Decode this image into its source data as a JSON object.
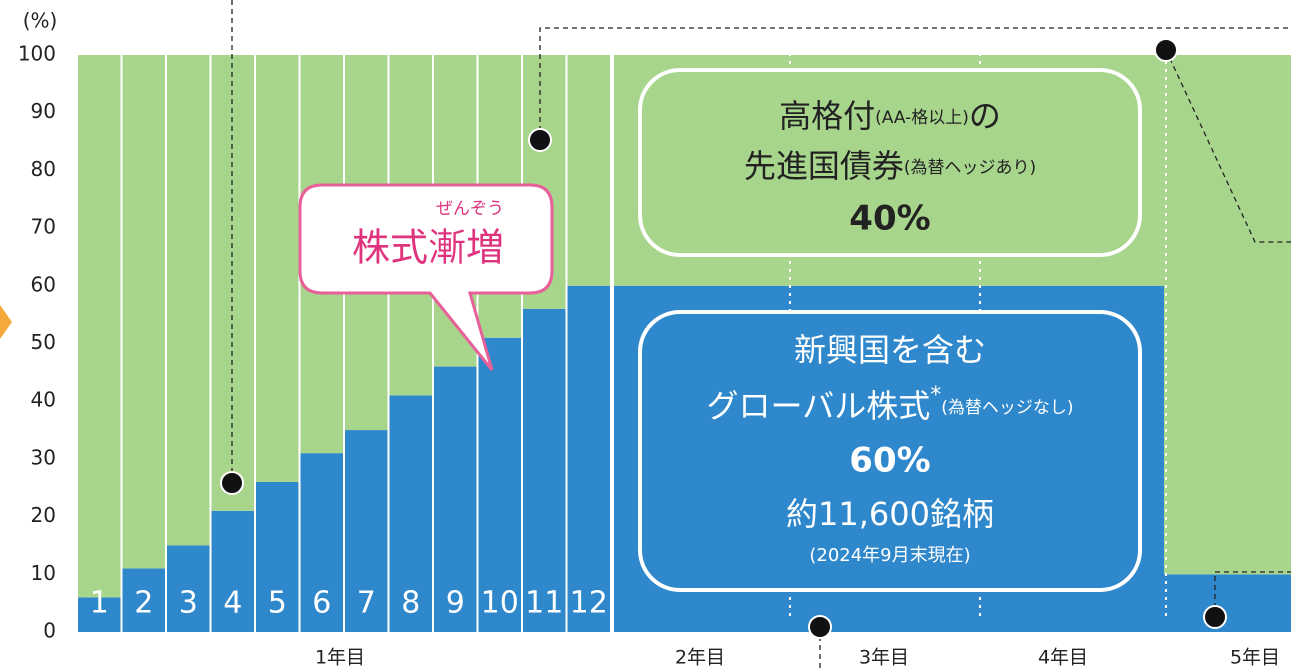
{
  "chart_data": {
    "type": "stacked-bar",
    "y_unit": "(%)",
    "categories": [
      "1",
      "2",
      "3",
      "4",
      "5",
      "6",
      "7",
      "8",
      "9",
      "10",
      "11",
      "12",
      null,
      null
    ],
    "periods": [
      "1年目",
      "2年目",
      "3年目",
      "4年目",
      "5年目"
    ],
    "series": [
      {
        "color": "#2f88cc",
        "values": [
          6,
          11,
          15,
          21,
          26,
          31,
          35,
          41,
          46,
          51,
          56,
          60,
          60,
          10
        ]
      },
      {
        "color": "#a8d58c",
        "values": [
          94,
          89,
          85,
          79,
          74,
          69,
          65,
          59,
          54,
          49,
          44,
          40,
          40,
          90
        ]
      }
    ],
    "ylim": [
      0,
      100
    ],
    "yticks": [
      0,
      10,
      20,
      30,
      40,
      50,
      60,
      70,
      80,
      90,
      100
    ],
    "callout": {
      "ruby": "ぜんぞう",
      "text": "株式漸増"
    },
    "bond_box": {
      "l1a": "高格付",
      "l1b": "(AA-格以上)",
      "l1c": "の",
      "l2a": "先進国債券",
      "l2b": "(為替ヘッジあり)",
      "share": "40%"
    },
    "equity_box": {
      "l1": "新興国を含む",
      "l2a": "グローバル株式",
      "l2b": "*",
      "l2c": "(為替ヘッジなし)",
      "share": "60%",
      "count": "約11,600銘柄",
      "asof": "(2024年9月末現在)"
    }
  }
}
